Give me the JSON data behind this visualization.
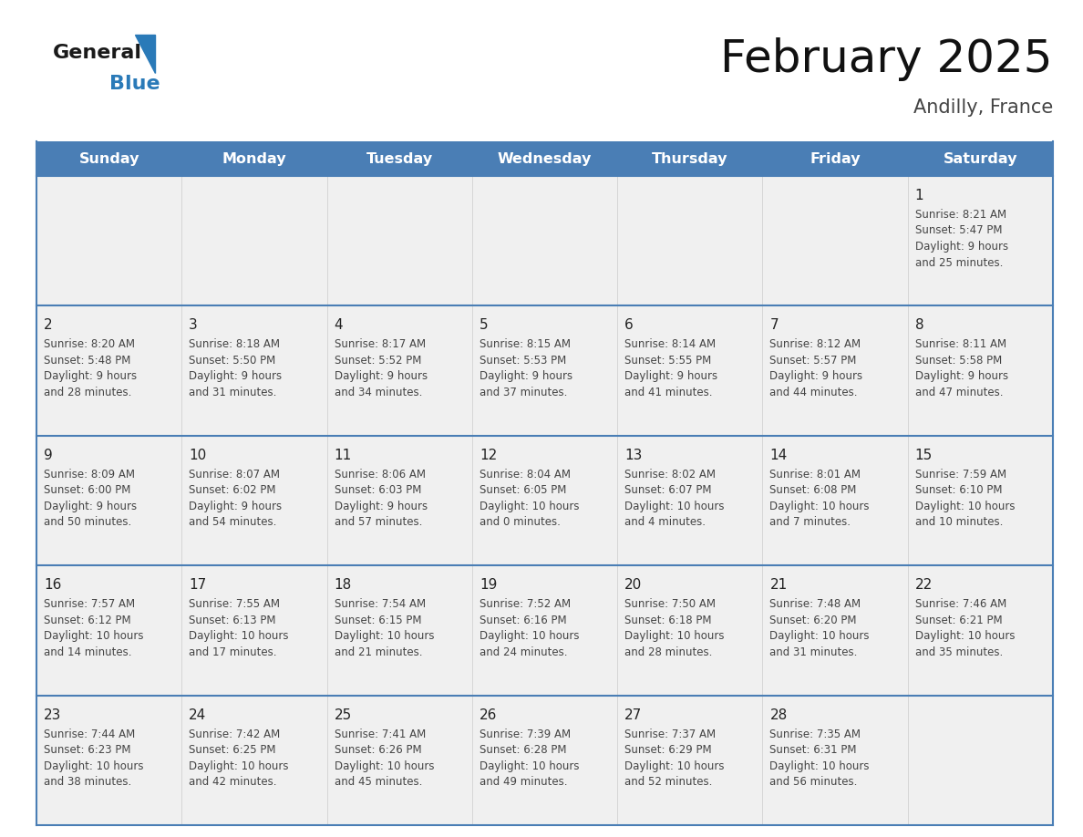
{
  "title": "February 2025",
  "subtitle": "Andilly, France",
  "days_of_week": [
    "Sunday",
    "Monday",
    "Tuesday",
    "Wednesday",
    "Thursday",
    "Friday",
    "Saturday"
  ],
  "header_bg": "#4a7eb5",
  "header_text": "#ffffff",
  "cell_bg_odd": "#f0f0f0",
  "cell_bg_even": "#ffffff",
  "row_line_color": "#4a7eb5",
  "day_number_color": "#222222",
  "info_text_color": "#444444",
  "title_color": "#111111",
  "subtitle_color": "#444444",
  "logo_general_color": "#1a1a1a",
  "logo_blue_color": "#2a7ab8",
  "calendar_data": [
    [
      null,
      null,
      null,
      null,
      null,
      null,
      {
        "day": "1",
        "sunrise": "8:21 AM",
        "sunset": "5:47 PM",
        "daylight": "9 hours",
        "daylight2": "and 25 minutes."
      }
    ],
    [
      {
        "day": "2",
        "sunrise": "8:20 AM",
        "sunset": "5:48 PM",
        "daylight": "9 hours",
        "daylight2": "and 28 minutes."
      },
      {
        "day": "3",
        "sunrise": "8:18 AM",
        "sunset": "5:50 PM",
        "daylight": "9 hours",
        "daylight2": "and 31 minutes."
      },
      {
        "day": "4",
        "sunrise": "8:17 AM",
        "sunset": "5:52 PM",
        "daylight": "9 hours",
        "daylight2": "and 34 minutes."
      },
      {
        "day": "5",
        "sunrise": "8:15 AM",
        "sunset": "5:53 PM",
        "daylight": "9 hours",
        "daylight2": "and 37 minutes."
      },
      {
        "day": "6",
        "sunrise": "8:14 AM",
        "sunset": "5:55 PM",
        "daylight": "9 hours",
        "daylight2": "and 41 minutes."
      },
      {
        "day": "7",
        "sunrise": "8:12 AM",
        "sunset": "5:57 PM",
        "daylight": "9 hours",
        "daylight2": "and 44 minutes."
      },
      {
        "day": "8",
        "sunrise": "8:11 AM",
        "sunset": "5:58 PM",
        "daylight": "9 hours",
        "daylight2": "and 47 minutes."
      }
    ],
    [
      {
        "day": "9",
        "sunrise": "8:09 AM",
        "sunset": "6:00 PM",
        "daylight": "9 hours",
        "daylight2": "and 50 minutes."
      },
      {
        "day": "10",
        "sunrise": "8:07 AM",
        "sunset": "6:02 PM",
        "daylight": "9 hours",
        "daylight2": "and 54 minutes."
      },
      {
        "day": "11",
        "sunrise": "8:06 AM",
        "sunset": "6:03 PM",
        "daylight": "9 hours",
        "daylight2": "and 57 minutes."
      },
      {
        "day": "12",
        "sunrise": "8:04 AM",
        "sunset": "6:05 PM",
        "daylight": "10 hours",
        "daylight2": "and 0 minutes."
      },
      {
        "day": "13",
        "sunrise": "8:02 AM",
        "sunset": "6:07 PM",
        "daylight": "10 hours",
        "daylight2": "and 4 minutes."
      },
      {
        "day": "14",
        "sunrise": "8:01 AM",
        "sunset": "6:08 PM",
        "daylight": "10 hours",
        "daylight2": "and 7 minutes."
      },
      {
        "day": "15",
        "sunrise": "7:59 AM",
        "sunset": "6:10 PM",
        "daylight": "10 hours",
        "daylight2": "and 10 minutes."
      }
    ],
    [
      {
        "day": "16",
        "sunrise": "7:57 AM",
        "sunset": "6:12 PM",
        "daylight": "10 hours",
        "daylight2": "and 14 minutes."
      },
      {
        "day": "17",
        "sunrise": "7:55 AM",
        "sunset": "6:13 PM",
        "daylight": "10 hours",
        "daylight2": "and 17 minutes."
      },
      {
        "day": "18",
        "sunrise": "7:54 AM",
        "sunset": "6:15 PM",
        "daylight": "10 hours",
        "daylight2": "and 21 minutes."
      },
      {
        "day": "19",
        "sunrise": "7:52 AM",
        "sunset": "6:16 PM",
        "daylight": "10 hours",
        "daylight2": "and 24 minutes."
      },
      {
        "day": "20",
        "sunrise": "7:50 AM",
        "sunset": "6:18 PM",
        "daylight": "10 hours",
        "daylight2": "and 28 minutes."
      },
      {
        "day": "21",
        "sunrise": "7:48 AM",
        "sunset": "6:20 PM",
        "daylight": "10 hours",
        "daylight2": "and 31 minutes."
      },
      {
        "day": "22",
        "sunrise": "7:46 AM",
        "sunset": "6:21 PM",
        "daylight": "10 hours",
        "daylight2": "and 35 minutes."
      }
    ],
    [
      {
        "day": "23",
        "sunrise": "7:44 AM",
        "sunset": "6:23 PM",
        "daylight": "10 hours",
        "daylight2": "and 38 minutes."
      },
      {
        "day": "24",
        "sunrise": "7:42 AM",
        "sunset": "6:25 PM",
        "daylight": "10 hours",
        "daylight2": "and 42 minutes."
      },
      {
        "day": "25",
        "sunrise": "7:41 AM",
        "sunset": "6:26 PM",
        "daylight": "10 hours",
        "daylight2": "and 45 minutes."
      },
      {
        "day": "26",
        "sunrise": "7:39 AM",
        "sunset": "6:28 PM",
        "daylight": "10 hours",
        "daylight2": "and 49 minutes."
      },
      {
        "day": "27",
        "sunrise": "7:37 AM",
        "sunset": "6:29 PM",
        "daylight": "10 hours",
        "daylight2": "and 52 minutes."
      },
      {
        "day": "28",
        "sunrise": "7:35 AM",
        "sunset": "6:31 PM",
        "daylight": "10 hours",
        "daylight2": "and 56 minutes."
      },
      null
    ]
  ]
}
